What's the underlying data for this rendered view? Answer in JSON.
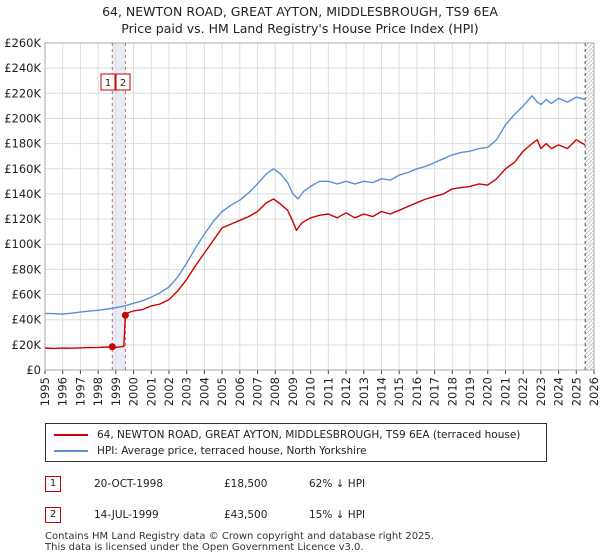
{
  "title": {
    "line1": "64, NEWTON ROAD, GREAT AYTON, MIDDLESBROUGH, TS9 6EA",
    "line2": "Price paid vs. HM Land Registry's House Price Index (HPI)"
  },
  "chart_data": {
    "type": "line",
    "title": "64, NEWTON ROAD, GREAT AYTON, MIDDLESBROUGH, TS9 6EA",
    "subtitle": "Price paid vs. HM Land Registry's House Price Index (HPI)",
    "xlabel": "",
    "ylabel": "",
    "xlim": [
      1995,
      2026
    ],
    "ylim": [
      0,
      260000
    ],
    "grid": true,
    "x_ticks": [
      "1995",
      "1996",
      "1997",
      "1998",
      "1999",
      "2000",
      "2001",
      "2002",
      "2003",
      "2004",
      "2005",
      "2006",
      "2007",
      "2008",
      "2009",
      "2010",
      "2011",
      "2012",
      "2013",
      "2014",
      "2015",
      "2016",
      "2017",
      "2018",
      "2019",
      "2020",
      "2021",
      "2022",
      "2023",
      "2024",
      "2025",
      "2026"
    ],
    "y_ticks": [
      {
        "value": 0,
        "label": "£0"
      },
      {
        "value": 20000,
        "label": "£20K"
      },
      {
        "value": 40000,
        "label": "£40K"
      },
      {
        "value": 60000,
        "label": "£60K"
      },
      {
        "value": 80000,
        "label": "£80K"
      },
      {
        "value": 100000,
        "label": "£100K"
      },
      {
        "value": 120000,
        "label": "£120K"
      },
      {
        "value": 140000,
        "label": "£140K"
      },
      {
        "value": 160000,
        "label": "£160K"
      },
      {
        "value": 180000,
        "label": "£180K"
      },
      {
        "value": 200000,
        "label": "£200K"
      },
      {
        "value": 220000,
        "label": "£220K"
      },
      {
        "value": 240000,
        "label": "£240K"
      },
      {
        "value": 260000,
        "label": "£260K"
      }
    ],
    "series": [
      {
        "name": "64, NEWTON ROAD, GREAT AYTON, MIDDLESBROUGH, TS9 6EA (terraced house)",
        "color": "#cc0000",
        "x": [
          1995.0,
          1995.5,
          1996.0,
          1996.5,
          1997.0,
          1997.5,
          1998.0,
          1998.5,
          1998.8,
          1999.0,
          1999.3,
          1999.45,
          1999.54,
          1999.6,
          2000.0,
          2000.5,
          2001.0,
          2001.5,
          2002.0,
          2002.5,
          2003.0,
          2003.5,
          2004.0,
          2004.5,
          2005.0,
          2005.5,
          2006.0,
          2006.5,
          2007.0,
          2007.5,
          2007.9,
          2008.3,
          2008.7,
          2009.0,
          2009.2,
          2009.5,
          2010.0,
          2010.5,
          2011.0,
          2011.5,
          2012.0,
          2012.5,
          2013.0,
          2013.5,
          2014.0,
          2014.5,
          2015.0,
          2015.5,
          2016.0,
          2016.5,
          2017.0,
          2017.5,
          2018.0,
          2018.5,
          2019.0,
          2019.5,
          2020.0,
          2020.5,
          2021.0,
          2021.5,
          2022.0,
          2022.5,
          2022.8,
          2023.0,
          2023.3,
          2023.6,
          2024.0,
          2024.5,
          2025.0,
          2025.5
        ],
        "values": [
          17500,
          17200,
          17400,
          17300,
          17600,
          17800,
          18000,
          18300,
          18500,
          18000,
          18500,
          18800,
          43500,
          45000,
          47000,
          48000,
          51000,
          52500,
          56000,
          63000,
          72000,
          83000,
          93000,
          103000,
          113000,
          116000,
          119000,
          122000,
          126000,
          133000,
          136000,
          132000,
          127000,
          118000,
          111000,
          117000,
          121000,
          123000,
          124000,
          121000,
          125000,
          121000,
          124000,
          122000,
          126000,
          124000,
          127000,
          130000,
          133000,
          136000,
          138000,
          140000,
          144000,
          145000,
          146000,
          148000,
          147000,
          152000,
          160000,
          165000,
          174000,
          180000,
          183000,
          176000,
          180000,
          176000,
          179000,
          176000,
          183000,
          179000
        ]
      },
      {
        "name": "HPI: Average price, terraced house, North Yorkshire",
        "color": "#5b8fd6",
        "x": [
          1995.0,
          1995.5,
          1996.0,
          1996.5,
          1997.0,
          1997.5,
          1998.0,
          1998.5,
          1999.0,
          1999.5,
          2000.0,
          2000.5,
          2001.0,
          2001.5,
          2002.0,
          2002.5,
          2003.0,
          2003.5,
          2004.0,
          2004.5,
          2005.0,
          2005.5,
          2006.0,
          2006.5,
          2007.0,
          2007.5,
          2007.9,
          2008.3,
          2008.7,
          2009.0,
          2009.3,
          2009.6,
          2010.0,
          2010.5,
          2011.0,
          2011.5,
          2012.0,
          2012.5,
          2013.0,
          2013.5,
          2014.0,
          2014.5,
          2015.0,
          2015.5,
          2016.0,
          2016.5,
          2017.0,
          2017.5,
          2018.0,
          2018.5,
          2019.0,
          2019.5,
          2020.0,
          2020.5,
          2021.0,
          2021.5,
          2022.0,
          2022.5,
          2022.8,
          2023.0,
          2023.3,
          2023.6,
          2024.0,
          2024.5,
          2025.0,
          2025.5
        ],
        "values": [
          45000,
          44800,
          44500,
          45200,
          46000,
          46800,
          47500,
          48500,
          49500,
          51000,
          53000,
          55000,
          58000,
          61500,
          66000,
          74000,
          85000,
          97000,
          108000,
          118000,
          126000,
          131000,
          135000,
          141000,
          148000,
          156000,
          160000,
          156000,
          149000,
          140000,
          136000,
          142000,
          146000,
          150000,
          150000,
          148000,
          150000,
          148000,
          150000,
          149000,
          152000,
          151000,
          155000,
          157000,
          160000,
          162000,
          165000,
          168000,
          171000,
          173000,
          174000,
          176000,
          177000,
          183000,
          195000,
          203000,
          210000,
          218000,
          213000,
          211000,
          215000,
          212000,
          216000,
          213000,
          217000,
          215000
        ]
      }
    ],
    "sales": [
      {
        "id": "1",
        "x": 1998.8,
        "value": 18500
      },
      {
        "id": "2",
        "x": 1999.54,
        "value": 43500
      }
    ]
  },
  "legend": {
    "red_label": "64, NEWTON ROAD, GREAT AYTON, MIDDLESBROUGH, TS9 6EA (terraced house)",
    "blue_label": "HPI: Average price, terraced house, North Yorkshire"
  },
  "sales_table": [
    {
      "id": "1",
      "date": "20-OCT-1998",
      "price": "£18,500",
      "hpi": "62% ↓ HPI"
    },
    {
      "id": "2",
      "date": "14-JUL-1999",
      "price": "£43,500",
      "hpi": "15% ↓ HPI"
    }
  ],
  "footer": {
    "line1": "Contains HM Land Registry data © Crown copyright and database right 2025.",
    "line2": "This data is licensed under the Open Government Licence v3.0."
  },
  "colors": {
    "red": "#cc0000",
    "blue": "#5b8fd6",
    "grid": "#dddddd",
    "plot_bg": "#ffffff",
    "shade": "#dde6f4"
  }
}
